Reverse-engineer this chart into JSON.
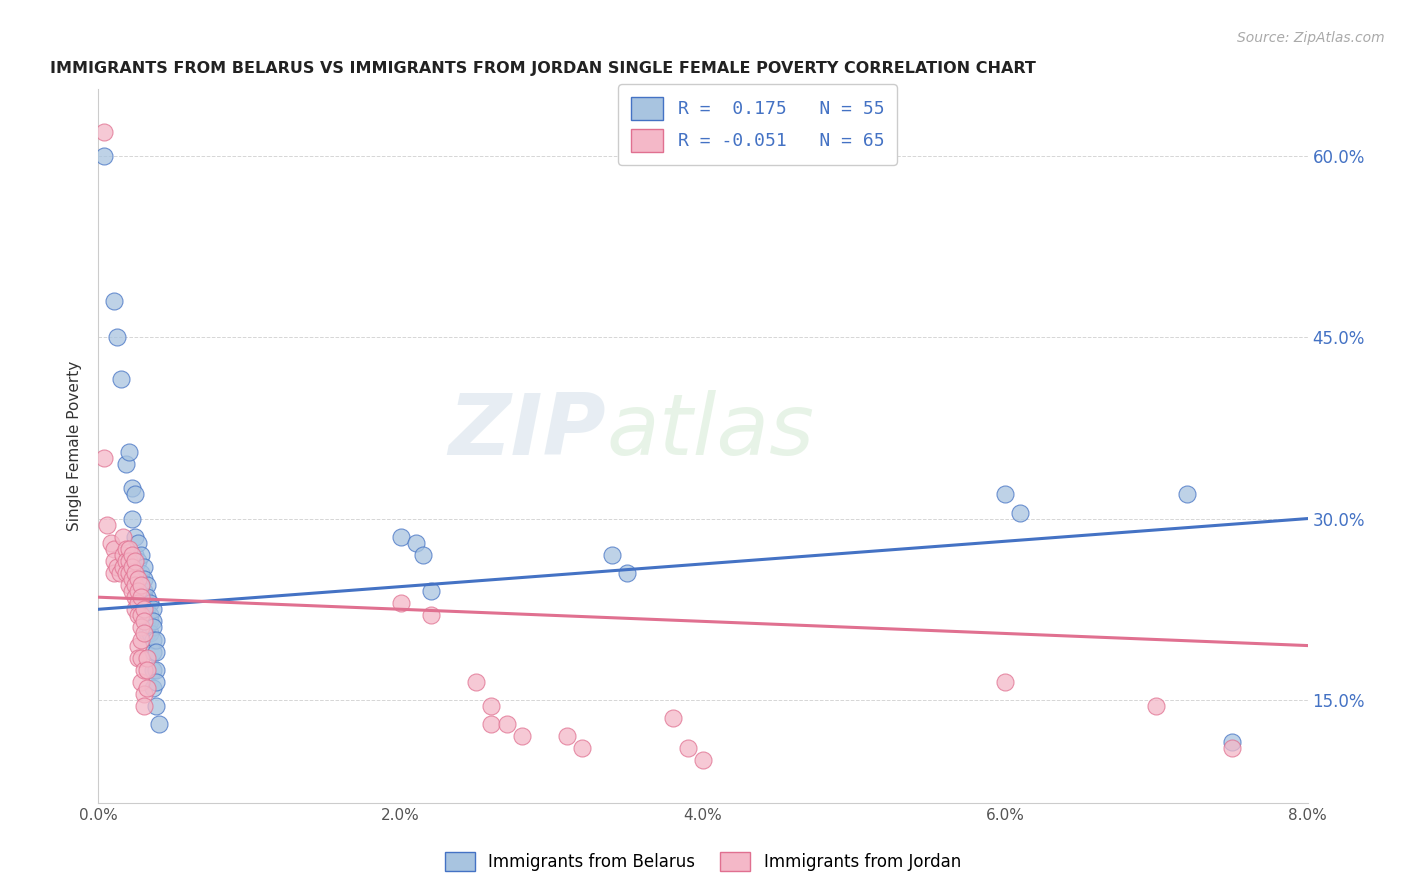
{
  "title": "IMMIGRANTS FROM BELARUS VS IMMIGRANTS FROM JORDAN SINGLE FEMALE POVERTY CORRELATION CHART",
  "source": "Source: ZipAtlas.com",
  "ylabel": "Single Female Poverty",
  "ytick_labels": [
    "15.0%",
    "30.0%",
    "45.0%",
    "60.0%"
  ],
  "ytick_values": [
    0.15,
    0.3,
    0.45,
    0.6
  ],
  "xtick_values": [
    0.0,
    0.02,
    0.04,
    0.06,
    0.08
  ],
  "xtick_labels": [
    "0.0%",
    "2.0%",
    "4.0%",
    "6.0%",
    "8.0%"
  ],
  "legend_label1": "Immigrants from Belarus",
  "legend_label2": "Immigrants from Jordan",
  "R1": 0.175,
  "N1": 55,
  "R2": -0.051,
  "N2": 65,
  "color_blue": "#a8c4e0",
  "color_pink": "#f4b8c8",
  "line_color_blue": "#4472c4",
  "line_color_pink": "#e07090",
  "watermark": "ZIPatlas",
  "xlim": [
    0.0,
    0.08
  ],
  "ylim": [
    0.065,
    0.655
  ],
  "background": "#ffffff",
  "scatter_blue": [
    [
      0.0004,
      0.6
    ],
    [
      0.001,
      0.48
    ],
    [
      0.0012,
      0.45
    ],
    [
      0.0015,
      0.415
    ],
    [
      0.0018,
      0.345
    ],
    [
      0.002,
      0.355
    ],
    [
      0.0022,
      0.325
    ],
    [
      0.0022,
      0.3
    ],
    [
      0.0024,
      0.32
    ],
    [
      0.0024,
      0.285
    ],
    [
      0.0024,
      0.27
    ],
    [
      0.0024,
      0.26
    ],
    [
      0.0026,
      0.28
    ],
    [
      0.0026,
      0.265
    ],
    [
      0.0028,
      0.27
    ],
    [
      0.0028,
      0.255
    ],
    [
      0.0028,
      0.245
    ],
    [
      0.0028,
      0.23
    ],
    [
      0.003,
      0.26
    ],
    [
      0.003,
      0.25
    ],
    [
      0.003,
      0.24
    ],
    [
      0.003,
      0.235
    ],
    [
      0.003,
      0.225
    ],
    [
      0.0032,
      0.245
    ],
    [
      0.0032,
      0.235
    ],
    [
      0.0032,
      0.225
    ],
    [
      0.0032,
      0.215
    ],
    [
      0.0032,
      0.205
    ],
    [
      0.0034,
      0.23
    ],
    [
      0.0034,
      0.22
    ],
    [
      0.0034,
      0.215
    ],
    [
      0.0034,
      0.205
    ],
    [
      0.0036,
      0.225
    ],
    [
      0.0036,
      0.215
    ],
    [
      0.0036,
      0.21
    ],
    [
      0.0036,
      0.2
    ],
    [
      0.0036,
      0.19
    ],
    [
      0.0036,
      0.175
    ],
    [
      0.0036,
      0.16
    ],
    [
      0.0038,
      0.2
    ],
    [
      0.0038,
      0.19
    ],
    [
      0.0038,
      0.175
    ],
    [
      0.0038,
      0.165
    ],
    [
      0.0038,
      0.145
    ],
    [
      0.004,
      0.13
    ],
    [
      0.02,
      0.285
    ],
    [
      0.021,
      0.28
    ],
    [
      0.0215,
      0.27
    ],
    [
      0.022,
      0.24
    ],
    [
      0.034,
      0.27
    ],
    [
      0.035,
      0.255
    ],
    [
      0.06,
      0.32
    ],
    [
      0.061,
      0.305
    ],
    [
      0.072,
      0.32
    ],
    [
      0.075,
      0.115
    ]
  ],
  "scatter_pink": [
    [
      0.0004,
      0.62
    ],
    [
      0.0004,
      0.35
    ],
    [
      0.0006,
      0.295
    ],
    [
      0.0008,
      0.28
    ],
    [
      0.001,
      0.275
    ],
    [
      0.001,
      0.265
    ],
    [
      0.001,
      0.255
    ],
    [
      0.0012,
      0.26
    ],
    [
      0.0014,
      0.255
    ],
    [
      0.0016,
      0.285
    ],
    [
      0.0016,
      0.27
    ],
    [
      0.0016,
      0.26
    ],
    [
      0.0018,
      0.275
    ],
    [
      0.0018,
      0.265
    ],
    [
      0.0018,
      0.255
    ],
    [
      0.002,
      0.275
    ],
    [
      0.002,
      0.265
    ],
    [
      0.002,
      0.255
    ],
    [
      0.002,
      0.245
    ],
    [
      0.0022,
      0.27
    ],
    [
      0.0022,
      0.26
    ],
    [
      0.0022,
      0.25
    ],
    [
      0.0022,
      0.24
    ],
    [
      0.0024,
      0.265
    ],
    [
      0.0024,
      0.255
    ],
    [
      0.0024,
      0.245
    ],
    [
      0.0024,
      0.235
    ],
    [
      0.0024,
      0.225
    ],
    [
      0.0026,
      0.25
    ],
    [
      0.0026,
      0.24
    ],
    [
      0.0026,
      0.23
    ],
    [
      0.0026,
      0.22
    ],
    [
      0.0026,
      0.195
    ],
    [
      0.0026,
      0.185
    ],
    [
      0.0028,
      0.245
    ],
    [
      0.0028,
      0.235
    ],
    [
      0.0028,
      0.22
    ],
    [
      0.0028,
      0.21
    ],
    [
      0.0028,
      0.2
    ],
    [
      0.0028,
      0.185
    ],
    [
      0.0028,
      0.165
    ],
    [
      0.003,
      0.225
    ],
    [
      0.003,
      0.215
    ],
    [
      0.003,
      0.205
    ],
    [
      0.003,
      0.175
    ],
    [
      0.003,
      0.155
    ],
    [
      0.003,
      0.145
    ],
    [
      0.0032,
      0.185
    ],
    [
      0.0032,
      0.175
    ],
    [
      0.0032,
      0.16
    ],
    [
      0.02,
      0.23
    ],
    [
      0.022,
      0.22
    ],
    [
      0.025,
      0.165
    ],
    [
      0.026,
      0.145
    ],
    [
      0.026,
      0.13
    ],
    [
      0.027,
      0.13
    ],
    [
      0.028,
      0.12
    ],
    [
      0.031,
      0.12
    ],
    [
      0.032,
      0.11
    ],
    [
      0.038,
      0.135
    ],
    [
      0.039,
      0.11
    ],
    [
      0.04,
      0.1
    ],
    [
      0.06,
      0.165
    ],
    [
      0.07,
      0.145
    ],
    [
      0.075,
      0.11
    ]
  ]
}
